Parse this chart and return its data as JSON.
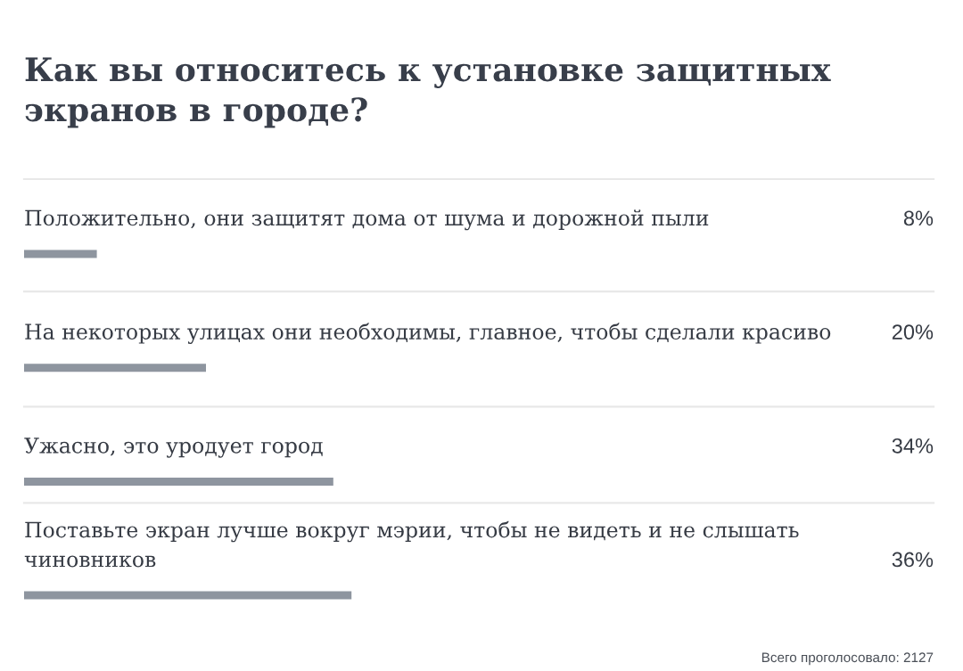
{
  "chart_data": {
    "type": "bar",
    "orientation": "horizontal",
    "title": "Как вы относитесь к установке защитных экранов в городе?",
    "categories": [
      "Положительно, они защитят дома от шума и дорожной пыли",
      "На некоторых улицах они необходимы, главное, чтобы сделали красиво",
      "Ужасно, это уродует город",
      "Поставьте экран лучше вокруг мэрии, чтобы не видеть и не слышать чиновников"
    ],
    "values": [
      8,
      20,
      34,
      36
    ],
    "value_labels": [
      "8%",
      "20%",
      "34%",
      "36%"
    ],
    "color": "#8e959f",
    "xlim": [
      0,
      100
    ],
    "tick_labels": "y",
    "annotations": [
      "Всего проголосовало: 2127"
    ]
  }
}
